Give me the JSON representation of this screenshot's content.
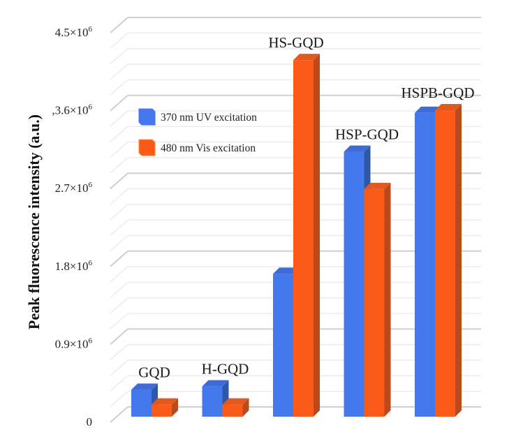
{
  "chart_data": {
    "type": "bar",
    "style": "3d-clustered-column",
    "title": "",
    "xlabel": "",
    "ylabel": "Peak fluorescence intensity (a.u.)",
    "ylim": [
      0,
      4500000
    ],
    "grid": true,
    "minor_grid_step": 180000,
    "y_ticks": [
      0,
      900000,
      1800000,
      2700000,
      3600000,
      4500000
    ],
    "y_tick_labels": [
      "0",
      "0.9×10⁶",
      "1.8×10⁶",
      "2.7×10⁶",
      ",3.6×10⁶",
      "4.5×10⁶"
    ],
    "categories": [
      "GQD",
      "H-GQD",
      "HS-GQD",
      "HSP-GQD",
      "HSPB-GQD"
    ],
    "series": [
      {
        "name": "370 nm UV excitation",
        "color": "#4479EE",
        "values": [
          310000,
          350000,
          1650000,
          3060000,
          3510000
        ]
      },
      {
        "name": "480 nm Vis excitation",
        "color": "#FC5A18",
        "values": [
          140000,
          140000,
          4120000,
          2630000,
          3540000
        ]
      }
    ],
    "legend_position": "top-left (inside plot)"
  }
}
